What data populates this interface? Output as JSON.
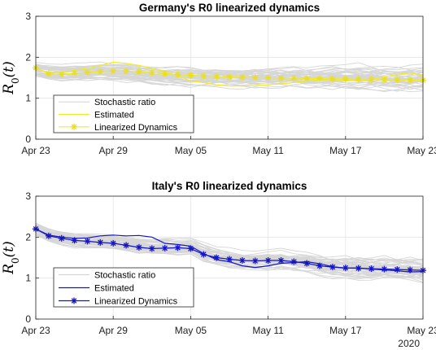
{
  "chart_data": [
    {
      "type": "line",
      "title": "Germany's R0 linearized dynamics",
      "ylabel": "R_0(t)",
      "ylabel_parts": {
        "main": "R",
        "sub": "0",
        "arg": "(t)"
      },
      "x_ticks": [
        "Apr 23",
        "Apr 29",
        "May 05",
        "May 11",
        "May 17",
        "May 23"
      ],
      "x_tick_days": [
        0,
        6,
        12,
        18,
        24,
        30
      ],
      "year_label": "",
      "y_ticks": [
        "0",
        "1",
        "2",
        "3"
      ],
      "xlim_days": [
        0,
        30
      ],
      "ylim": [
        0,
        3
      ],
      "grid": true,
      "legend_position": "bottom-left",
      "legend": [
        "Stochastic ratio",
        "Estimated",
        "Linearized Dynamics"
      ],
      "colors": {
        "stochastic": "#d6d6d6",
        "estimated": "#f2ea26",
        "linearized": "#f2ea26",
        "marker": "#e8e020"
      },
      "series": [
        {
          "name": "Stochastic ratio",
          "kind": "band",
          "center": [
            1.7,
            1.65,
            1.62,
            1.62,
            1.63,
            1.64,
            1.62,
            1.6,
            1.58,
            1.55,
            1.54,
            1.54,
            1.53,
            1.53,
            1.53,
            1.52,
            1.52,
            1.52,
            1.52,
            1.52,
            1.52,
            1.5,
            1.5,
            1.5,
            1.5,
            1.5,
            1.5,
            1.48,
            1.48,
            1.48,
            1.48
          ],
          "spread": 0.42,
          "count": 45
        },
        {
          "name": "Estimated",
          "x_days": [
            0,
            1,
            2,
            3,
            4,
            5,
            6,
            7,
            8,
            9,
            10,
            11,
            12,
            13,
            14,
            15,
            16,
            17,
            18,
            19,
            20,
            21,
            22,
            23,
            24,
            25,
            26,
            27,
            28,
            29,
            30
          ],
          "values": [
            1.72,
            1.62,
            1.63,
            1.68,
            1.73,
            1.8,
            1.88,
            1.85,
            1.8,
            1.73,
            1.65,
            1.55,
            1.42,
            1.38,
            1.33,
            1.3,
            1.3,
            1.31,
            1.33,
            1.35,
            1.38,
            1.42,
            1.45,
            1.45,
            1.44,
            1.43,
            1.45,
            1.52,
            1.58,
            1.62,
            1.55
          ]
        },
        {
          "name": "Linearized Dynamics",
          "x_days": [
            0,
            1,
            2,
            3,
            4,
            5,
            6,
            7,
            8,
            9,
            10,
            11,
            12,
            13,
            14,
            15,
            16,
            17,
            18,
            19,
            20,
            21,
            22,
            23,
            24,
            25,
            26,
            27,
            28,
            29,
            30
          ],
          "values": [
            1.74,
            1.6,
            1.58,
            1.61,
            1.63,
            1.65,
            1.66,
            1.66,
            1.65,
            1.62,
            1.6,
            1.58,
            1.56,
            1.54,
            1.53,
            1.52,
            1.51,
            1.5,
            1.5,
            1.49,
            1.49,
            1.48,
            1.48,
            1.47,
            1.47,
            1.46,
            1.46,
            1.45,
            1.45,
            1.44,
            1.44
          ]
        }
      ]
    },
    {
      "type": "line",
      "title": "Italy's R0 linearized dynamics",
      "ylabel": "R_0(t)",
      "ylabel_parts": {
        "main": "R",
        "sub": "0",
        "arg": "(t)"
      },
      "x_ticks": [
        "Apr 23",
        "Apr 29",
        "May 05",
        "May 11",
        "May 17",
        "May 23"
      ],
      "x_tick_days": [
        0,
        6,
        12,
        18,
        24,
        30
      ],
      "year_label": "2020",
      "y_ticks": [
        "0",
        "1",
        "2",
        "3"
      ],
      "xlim_days": [
        0,
        30
      ],
      "ylim": [
        0,
        3
      ],
      "grid": true,
      "legend_position": "bottom-left",
      "legend": [
        "Stochastic ratio",
        "Estimated",
        "Linearized Dynamics"
      ],
      "colors": {
        "stochastic": "#d6d6d6",
        "estimated": "#1515c8",
        "linearized": "#1515c8",
        "marker": "#1515c8"
      },
      "series": [
        {
          "name": "Stochastic ratio",
          "kind": "band",
          "center": [
            2.2,
            2.05,
            1.98,
            1.93,
            1.9,
            1.88,
            1.86,
            1.82,
            1.78,
            1.76,
            1.75,
            1.75,
            1.74,
            1.6,
            1.5,
            1.46,
            1.43,
            1.42,
            1.42,
            1.42,
            1.4,
            1.36,
            1.3,
            1.26,
            1.25,
            1.24,
            1.22,
            1.22,
            1.2,
            1.2,
            1.18
          ],
          "spread": 0.38,
          "count": 45
        },
        {
          "name": "Estimated",
          "x_days": [
            0,
            1,
            2,
            3,
            4,
            5,
            6,
            7,
            8,
            9,
            10,
            11,
            12,
            13,
            14,
            15,
            16,
            17,
            18,
            19,
            20,
            21,
            22,
            23,
            24,
            25,
            26,
            27,
            28,
            29,
            30
          ],
          "values": [
            2.2,
            2.05,
            2.0,
            1.97,
            1.98,
            2.03,
            2.05,
            2.03,
            2.04,
            2.0,
            1.85,
            1.82,
            1.78,
            1.6,
            1.45,
            1.4,
            1.3,
            1.26,
            1.3,
            1.36,
            1.38,
            1.4,
            1.35,
            1.28,
            1.24,
            1.25,
            1.22,
            1.2,
            1.18,
            1.15,
            1.16
          ]
        },
        {
          "name": "Linearized Dynamics",
          "x_days": [
            0,
            1,
            2,
            3,
            4,
            5,
            6,
            7,
            8,
            9,
            10,
            11,
            12,
            13,
            14,
            15,
            16,
            17,
            18,
            19,
            20,
            21,
            22,
            23,
            24,
            25,
            26,
            27,
            28,
            29,
            30
          ],
          "values": [
            2.2,
            2.03,
            1.97,
            1.92,
            1.9,
            1.87,
            1.85,
            1.8,
            1.75,
            1.72,
            1.73,
            1.74,
            1.72,
            1.58,
            1.5,
            1.46,
            1.43,
            1.42,
            1.43,
            1.43,
            1.4,
            1.36,
            1.3,
            1.27,
            1.25,
            1.24,
            1.23,
            1.22,
            1.21,
            1.2,
            1.19
          ]
        }
      ]
    }
  ]
}
